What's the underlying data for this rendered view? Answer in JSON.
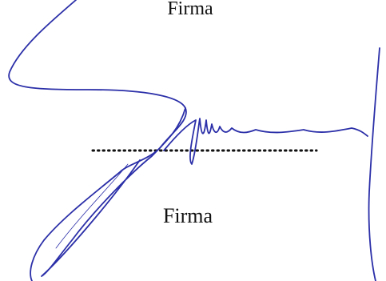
{
  "top_label": "Firma",
  "signature_label": "Firma"
}
